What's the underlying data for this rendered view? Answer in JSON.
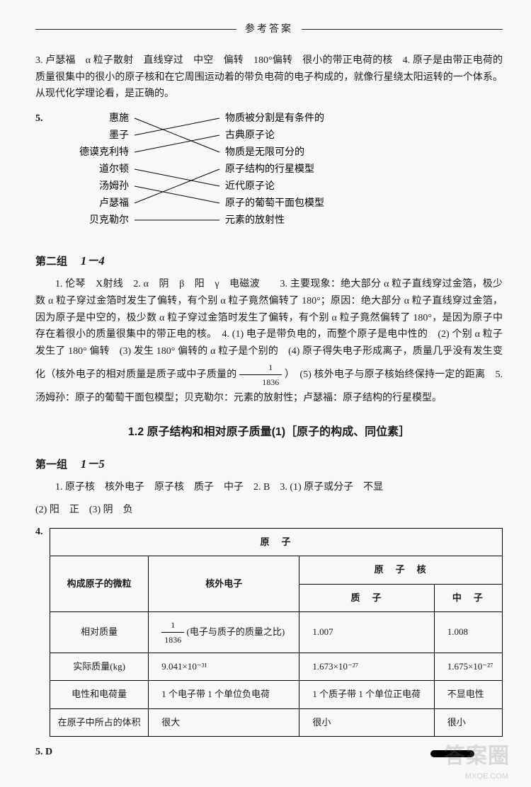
{
  "header": {
    "title": "参考答案"
  },
  "q3_q4": {
    "text": "3. 卢瑟福　α 粒子散射　直线穿过　中空　偏转　180°偏转　很小的带正电荷的核　4. 原子是由带正电荷的质量很集中的很小的原子核和在它周围运动着的带负电荷的电子构成的，就像行星绕太阳运转的一个体系。从现代化学理论看，是正确的。"
  },
  "q5": {
    "label": "5.",
    "left": [
      "惠施",
      "墨子",
      "德谟克利特",
      "道尔顿",
      "汤姆孙",
      "卢瑟福",
      "贝克勒尔"
    ],
    "right": [
      "物质被分割是有条件的",
      "古典原子论",
      "物质是无限可分的",
      "原子结构的行星模型",
      "近代原子论",
      "原子的葡萄干面包模型",
      "元素的放射性"
    ],
    "edges": [
      [
        0,
        2
      ],
      [
        1,
        0
      ],
      [
        2,
        1
      ],
      [
        3,
        4
      ],
      [
        4,
        5
      ],
      [
        5,
        3
      ],
      [
        6,
        6
      ]
    ]
  },
  "group2": {
    "heading": "第二组",
    "range": "1－4",
    "body": "1. 伦琴　X射线　2. α　阴　β　阳　γ　电磁波　　3. 主要现象：绝大部分 α 粒子直线穿过金箔，极少数 α 粒子穿过金箔时发生了偏转，有个别 α 粒子竟然偏转了 180°；原因：绝大部分 α 粒子直线穿过金箔，因为原子是中空的，极少数 α 粒子穿过金箔时发生了偏转，有个别 α 粒子竟然偏转了 180°，是因为原子中存在着很小的质量很集中的带正电的核。　4. (1) 电子是带负电的，而整个原子是电中性的　(2) 个别 α 粒子发生了 180° 偏转　(3) 发生 180° 偏转的 α 粒子是个别的　(4) 原子得失电子形成离子，质量几乎没有发生变化（核外电子的相对质量是质子或中子质量的 ",
    "body_tail": "）　(5) 核外电子与原子核始终保持一定的距离　5. 汤姆孙：原子的葡萄干面包模型；贝克勒尔：元素的放射性；卢瑟福：原子结构的行星模型。"
  },
  "section": {
    "title": "1.2  原子结构和相对原子质量(1)［原子的构成、同位素］"
  },
  "group1": {
    "heading": "第一组",
    "range": "1－5",
    "line1": "1. 原子核　核外电子　原子核　质子　中子　2. B　3. (1) 原子或分子　不显",
    "line2": "(2) 阳　正　(3) 阴　负"
  },
  "table": {
    "title": "原　子",
    "col1_header": "构成原子的微粒",
    "col2_header": "核外电子",
    "nucleus_header": "原　子　核",
    "proton": "质　子",
    "neutron": "中　子",
    "rows": [
      {
        "label": "相对质量",
        "e": "(电子与质子的质量之比)",
        "p": "1.007",
        "n": "1.008"
      },
      {
        "label": "实际质量(kg)",
        "e": "9.041×10⁻³¹",
        "p": "1.673×10⁻²⁷",
        "n": "1.675×10⁻²⁷"
      },
      {
        "label": "电性和电荷量",
        "e": "1 个电子带 1 个单位负电荷",
        "p": "1 个质子带 1 个单位正电荷",
        "n": "不显电性"
      },
      {
        "label": "在原子中所占的体积",
        "e": "很大",
        "p": "很小",
        "n": "很小"
      }
    ]
  },
  "q5_end": {
    "text": "5. D"
  },
  "watermark": {
    "main": "答案圈",
    "sub": "MXQE.COM"
  }
}
